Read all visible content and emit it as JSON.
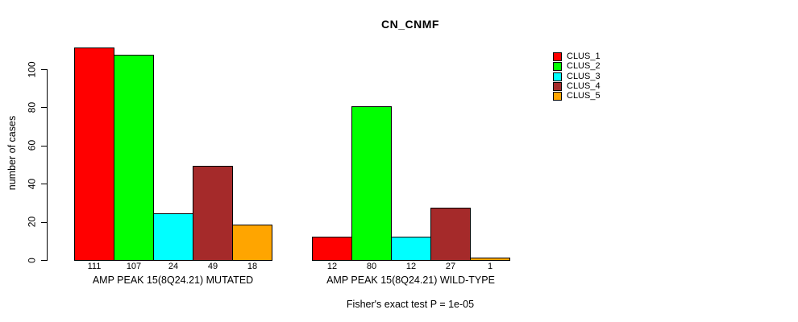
{
  "chart_data": {
    "type": "bar",
    "title": "CN_CNMF",
    "xlabel": "",
    "ylabel": "number of cases",
    "annotation": "Fisher's exact test P = 1e-05",
    "ylim": [
      0,
      115
    ],
    "yticks": [
      0,
      20,
      40,
      60,
      80,
      100
    ],
    "grid": false,
    "legend_position": "right",
    "bar_value_labels": true,
    "categories": [
      "AMP PEAK 15(8Q24.21) MUTATED",
      "AMP PEAK 15(8Q24.21) WILD-TYPE"
    ],
    "series": [
      {
        "name": "CLUS_1",
        "color": "#FF0000",
        "values": [
          111,
          12
        ]
      },
      {
        "name": "CLUS_2",
        "color": "#00FF00",
        "values": [
          107,
          80
        ]
      },
      {
        "name": "CLUS_3",
        "color": "#00FFFF",
        "values": [
          24,
          12
        ]
      },
      {
        "name": "CLUS_4",
        "color": "#A52A2A",
        "values": [
          49,
          27
        ]
      },
      {
        "name": "CLUS_5",
        "color": "#FFA500",
        "values": [
          18,
          1
        ]
      }
    ]
  },
  "colors": {
    "background": "#FFFFFF",
    "axis": "#000000",
    "text": "#000000"
  }
}
